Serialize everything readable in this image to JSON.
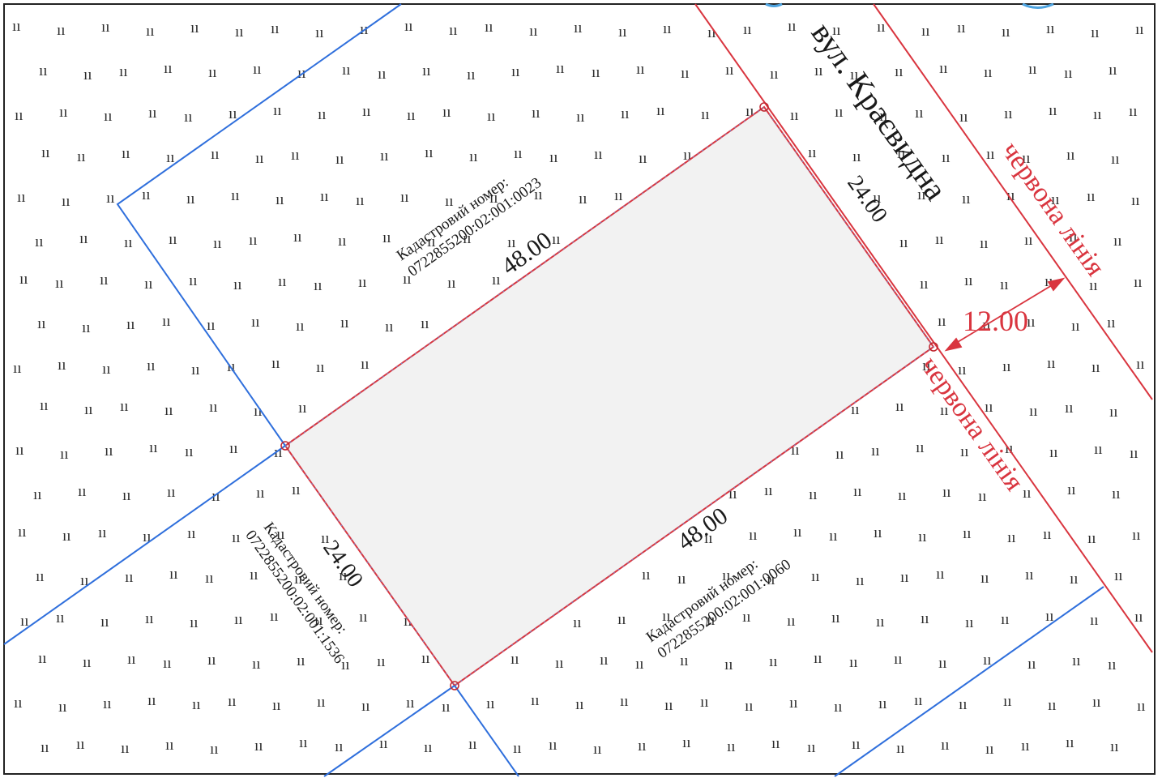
{
  "colors": {
    "parcel_boundary": "#2f6fdc",
    "red_line": "#d9353f",
    "text": "#1a1a1a",
    "parcel_fill": "#f2f2f2"
  },
  "street_name": "вул. Краєвидна",
  "red_line_labels": {
    "upper": "червона лінія",
    "lower": "червона лінія"
  },
  "setback_label": "12.00",
  "parcel_dimensions": {
    "top": "48.00",
    "bottom": "48.00",
    "right": "24.00",
    "left": "24.00"
  },
  "neighbor_parcels": [
    {
      "caption": "Кадастровий номер:",
      "number": "0722855200:02:001:0023"
    },
    {
      "caption": "Кадастровий номер:",
      "number": "0722855200:02:001:0060"
    },
    {
      "caption": "Кадастровий номер:",
      "number": "0722855200:02:001:1536"
    }
  ],
  "hatch_symbol": "ıı"
}
